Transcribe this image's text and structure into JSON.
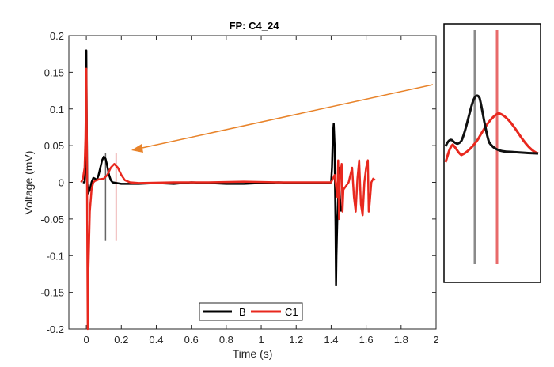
{
  "chart_data": {
    "type": "line",
    "title": "FP: C4_24",
    "xlabel": "Time (s)",
    "ylabel": "Voltage (mV)",
    "xlim": [
      -0.1,
      2
    ],
    "ylim": [
      -0.2,
      0.2
    ],
    "xticks": [
      0,
      0.2,
      0.4,
      0.6,
      0.8,
      1,
      1.2,
      1.4,
      1.6,
      1.8,
      2
    ],
    "xtick_labels": [
      "0",
      "0.2",
      "0.4",
      "0.6",
      "0.8",
      "1",
      "1.2",
      "1.4",
      "1.6",
      "1.8",
      "2"
    ],
    "yticks": [
      -0.2,
      -0.15,
      -0.1,
      -0.05,
      0,
      0.05,
      0.1,
      0.15,
      0.2
    ],
    "ytick_labels": [
      "-0.2",
      "-0.15",
      "-0.1",
      "-0.05",
      "0",
      "0.05",
      "0.1",
      "0.15",
      "0.2"
    ],
    "grid": false,
    "legend_position": "bottom-center",
    "series": [
      {
        "name": "B",
        "color": "#000000",
        "points": [
          [
            -0.02,
            0.0
          ],
          [
            -0.01,
            0.0
          ],
          [
            -0.005,
            0.02
          ],
          [
            -0.002,
            0.1
          ],
          [
            0.0,
            0.18
          ],
          [
            0.002,
            0.1
          ],
          [
            0.005,
            0.0
          ],
          [
            0.01,
            -0.015
          ],
          [
            0.02,
            -0.01
          ],
          [
            0.03,
            0.0
          ],
          [
            0.04,
            0.006
          ],
          [
            0.05,
            0.005
          ],
          [
            0.06,
            0.003
          ],
          [
            0.07,
            0.01
          ],
          [
            0.08,
            0.02
          ],
          [
            0.09,
            0.03
          ],
          [
            0.1,
            0.035
          ],
          [
            0.11,
            0.032
          ],
          [
            0.12,
            0.022
          ],
          [
            0.13,
            0.01
          ],
          [
            0.14,
            0.003
          ],
          [
            0.15,
            0.0
          ],
          [
            0.2,
            -0.002
          ],
          [
            0.3,
            -0.002
          ],
          [
            0.4,
            -0.001
          ],
          [
            0.5,
            -0.002
          ],
          [
            0.6,
            0.0
          ],
          [
            0.7,
            -0.001
          ],
          [
            0.8,
            -0.002
          ],
          [
            0.9,
            -0.002
          ],
          [
            1.0,
            -0.001
          ],
          [
            1.1,
            0.0
          ],
          [
            1.2,
            -0.001
          ],
          [
            1.3,
            -0.001
          ],
          [
            1.38,
            -0.001
          ],
          [
            1.4,
            0.0
          ],
          [
            1.405,
            0.02
          ],
          [
            1.41,
            0.065
          ],
          [
            1.415,
            0.08
          ],
          [
            1.42,
            0.05
          ],
          [
            1.422,
            0.0
          ],
          [
            1.425,
            -0.06
          ],
          [
            1.428,
            -0.14
          ],
          [
            1.43,
            -0.1
          ],
          [
            1.435,
            -0.05
          ],
          [
            1.44,
            -0.02
          ],
          [
            1.445,
            0.02
          ],
          [
            1.45,
            -0.02
          ],
          [
            1.455,
            -0.04
          ]
        ]
      },
      {
        "name": "C1",
        "color": "#e8281e",
        "points": [
          [
            -0.03,
            0.0
          ],
          [
            -0.02,
            0.005
          ],
          [
            -0.01,
            0.02
          ],
          [
            -0.005,
            0.06
          ],
          [
            0.0,
            0.155
          ],
          [
            0.003,
            0.05
          ],
          [
            0.006,
            -0.1
          ],
          [
            0.008,
            -0.2
          ],
          [
            0.012,
            -0.12
          ],
          [
            0.02,
            -0.04
          ],
          [
            0.03,
            -0.01
          ],
          [
            0.04,
            0.0
          ],
          [
            0.05,
            0.002
          ],
          [
            0.07,
            0.004
          ],
          [
            0.1,
            0.005
          ],
          [
            0.12,
            0.01
          ],
          [
            0.14,
            0.02
          ],
          [
            0.16,
            0.025
          ],
          [
            0.18,
            0.02
          ],
          [
            0.2,
            0.01
          ],
          [
            0.22,
            0.003
          ],
          [
            0.25,
            0.0
          ],
          [
            0.3,
            -0.001
          ],
          [
            0.5,
            0.0
          ],
          [
            0.7,
            0.0
          ],
          [
            0.9,
            0.001
          ],
          [
            1.1,
            0.0
          ],
          [
            1.3,
            0.0
          ],
          [
            1.4,
            0.0
          ],
          [
            1.42,
            0.01
          ],
          [
            1.435,
            -0.02
          ],
          [
            1.44,
            0.03
          ],
          [
            1.445,
            -0.05
          ],
          [
            1.45,
            0.005
          ],
          [
            1.46,
            0.025
          ],
          [
            1.465,
            -0.04
          ],
          [
            1.47,
            -0.01
          ],
          [
            1.5,
            0.0
          ],
          [
            1.52,
            0.02
          ],
          [
            1.53,
            -0.02
          ],
          [
            1.54,
            -0.04
          ],
          [
            1.55,
            0.005
          ],
          [
            1.56,
            0.03
          ],
          [
            1.57,
            -0.03
          ],
          [
            1.58,
            -0.045
          ],
          [
            1.59,
            0.0
          ],
          [
            1.6,
            0.02
          ],
          [
            1.61,
            0.03
          ],
          [
            1.615,
            -0.04
          ],
          [
            1.62,
            -0.03
          ],
          [
            1.63,
            0.0
          ],
          [
            1.64,
            0.005
          ],
          [
            1.65,
            0.003
          ]
        ]
      }
    ],
    "markers": [
      {
        "series": "B",
        "x": 0.11,
        "y_range": [
          -0.08,
          0.04
        ],
        "color": "#666666"
      },
      {
        "series": "C1",
        "x": 0.17,
        "y_range": [
          -0.08,
          0.04
        ],
        "color": "#e07070"
      }
    ],
    "annotation_arrow_color": "#e8832a",
    "inset": {
      "description_visible": false,
      "b_color": "#111111",
      "c1_color": "#e8281e"
    }
  }
}
